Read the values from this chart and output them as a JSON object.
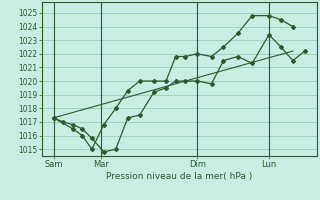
{
  "xlabel": "Pression niveau de la mer( hPa )",
  "bg_color": "#c8eee4",
  "grid_color": "#99ccbb",
  "line_color": "#2d5a2d",
  "ylim": [
    1014.5,
    1025.8
  ],
  "yticks": [
    1015,
    1016,
    1017,
    1018,
    1019,
    1020,
    1021,
    1022,
    1023,
    1024,
    1025
  ],
  "xtick_labels": [
    "Sam",
    "Mar",
    "Dim",
    "Lun"
  ],
  "xtick_positions": [
    0.5,
    2.5,
    6.5,
    9.5
  ],
  "vline_positions": [
    0.5,
    2.5,
    6.5,
    9.5
  ],
  "xlim": [
    0,
    11.5
  ],
  "series1_x": [
    0.5,
    0.9,
    1.3,
    1.7,
    2.1,
    2.6,
    3.1,
    3.6,
    4.1,
    4.7,
    5.2,
    5.6,
    6.0,
    6.5,
    7.1,
    7.6,
    8.2,
    8.8,
    9.5,
    10.0,
    10.5,
    11.0
  ],
  "series1_y": [
    1017.3,
    1017.0,
    1016.8,
    1016.5,
    1015.8,
    1014.8,
    1015.0,
    1017.3,
    1017.5,
    1019.2,
    1019.5,
    1020.0,
    1020.0,
    1020.0,
    1019.8,
    1021.5,
    1021.8,
    1021.3,
    1023.4,
    1022.5,
    1021.5,
    1022.2
  ],
  "series2_x": [
    0.5,
    1.3,
    1.7,
    2.1,
    2.6,
    3.1,
    3.6,
    4.1,
    4.7,
    5.2,
    5.6,
    6.0,
    6.5,
    7.1,
    7.6,
    8.2,
    8.8,
    9.5,
    10.0,
    10.5
  ],
  "series2_y": [
    1017.3,
    1016.5,
    1016.0,
    1015.0,
    1016.8,
    1018.0,
    1019.3,
    1020.0,
    1020.0,
    1020.0,
    1021.8,
    1021.8,
    1022.0,
    1021.8,
    1022.5,
    1023.5,
    1024.8,
    1024.8,
    1024.5,
    1024.0
  ],
  "series3_x": [
    0.5,
    10.5
  ],
  "series3_y": [
    1017.3,
    1022.2
  ]
}
